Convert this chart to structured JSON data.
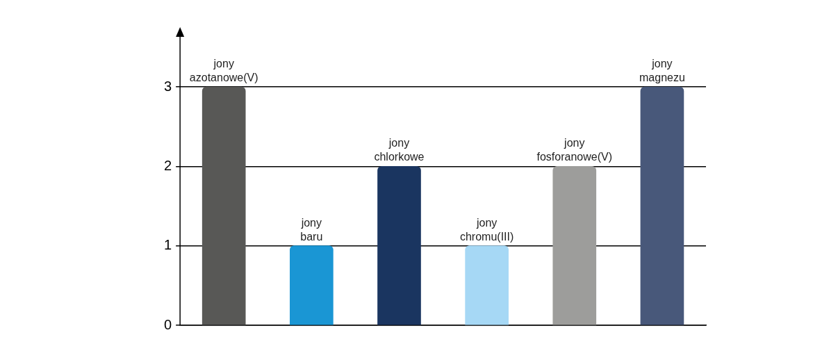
{
  "chart_data": {
    "type": "bar",
    "categories": [
      "jony azotanowe(V)",
      "jony baru",
      "jony chlorkowe",
      "jony chromu(III)",
      "jony fosforanowe(V)",
      "jony magnezu"
    ],
    "values": [
      3,
      1,
      2,
      1,
      2,
      3
    ],
    "colors": [
      "#585856",
      "#1a96d4",
      "#1a3560",
      "#a6d8f5",
      "#9d9d9b",
      "#48587a"
    ],
    "ylim": [
      0,
      3.7
    ],
    "yticks": [
      0,
      1,
      2,
      3
    ],
    "grid": "y",
    "legend": false
  }
}
